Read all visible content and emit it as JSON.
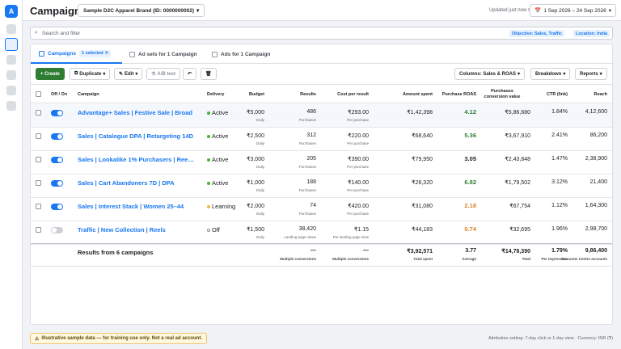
{
  "rail": {
    "logo": "A",
    "icons": [
      "nav-icon-1",
      "nav-icon-2",
      "nav-icon-3",
      "nav-icon-4",
      "nav-icon-5",
      "nav-icon-6"
    ],
    "active_index": 1
  },
  "header": {
    "title": "Campaigns",
    "account_label": "Sample D2C Apparel Brand (ID: 0000000002)",
    "updated": "Updated just now ⟳",
    "date_range": "1 Sep 2026 – 24 Sep 2026"
  },
  "search": {
    "placeholder": "Search and filter",
    "value": "",
    "chips": [
      "Objective: Sales, Traffic",
      "Location: India"
    ]
  },
  "tabs": [
    {
      "label": "Campaigns",
      "badge": "1 selected"
    },
    {
      "label": "Ad sets for 1 Campaign"
    },
    {
      "label": "Ads for 1 Campaign"
    }
  ],
  "toolbar": {
    "create": "+ Create",
    "duplicate": "Duplicate",
    "edit": "Edit",
    "ab_test": "A/B test",
    "undo": "↶",
    "delete": "🗑",
    "columns": "Columns: Sales & ROAS",
    "breakdown": "Breakdown",
    "reports": "Reports"
  },
  "columns": {
    "off_on": "Off / On",
    "campaign": "Campaign",
    "delivery": "Delivery",
    "budget": "Budget",
    "results": "Results",
    "cost_per_result": "Cost per result",
    "amount_spent": "Amount spent",
    "roas": "Purchase ROAS",
    "conv_value_1": "Purchases",
    "conv_value_2": "conversion value",
    "ctr": "CTR (link)",
    "reach": "Reach"
  },
  "rows": [
    {
      "on": true,
      "name": "Advantage+ Sales | Festive Sale | Broad",
      "delivery": "Active",
      "status_color": "#42b72a",
      "budget": "₹5,000",
      "budget_type": "Daily",
      "results": "486",
      "results_type": "Purchases",
      "cpr": "₹293.00",
      "cpr_type": "Per purchase",
      "spent": "₹1,42,398",
      "roas": "4.12",
      "roas_color": "#2e7d32",
      "conv_value": "₹5,86,680",
      "ctr": "1.84%",
      "reach": "4,12,600"
    },
    {
      "on": true,
      "name": "Sales | Catalogue DPA | Retargeting 14D",
      "delivery": "Active",
      "status_color": "#42b72a",
      "budget": "₹2,500",
      "budget_type": "Daily",
      "results": "312",
      "results_type": "Purchases",
      "cpr": "₹220.00",
      "cpr_type": "Per purchase",
      "spent": "₹68,640",
      "roas": "5.36",
      "roas_color": "#2e7d32",
      "conv_value": "₹3,67,910",
      "ctr": "2.41%",
      "reach": "86,200"
    },
    {
      "on": true,
      "name": "Sales | Lookalike 1% Purchasers | Ree…",
      "delivery": "Active",
      "status_color": "#42b72a",
      "budget": "₹3,000",
      "budget_type": "Daily",
      "results": "205",
      "results_type": "Purchases",
      "cpr": "₹390.00",
      "cpr_type": "Per purchase",
      "spent": "₹79,950",
      "roas": "3.05",
      "roas_color": "#1c1e21",
      "conv_value": "₹2,43,848",
      "ctr": "1.47%",
      "reach": "2,38,900"
    },
    {
      "on": true,
      "name": "Sales | Cart Abandoners 7D | DPA",
      "delivery": "Active",
      "status_color": "#42b72a",
      "budget": "₹1,000",
      "budget_type": "Daily",
      "results": "188",
      "results_type": "Purchases",
      "cpr": "₹140.00",
      "cpr_type": "Per purchase",
      "spent": "₹26,320",
      "roas": "6.82",
      "roas_color": "#2e7d32",
      "conv_value": "₹1,79,502",
      "ctr": "3.12%",
      "reach": "21,400"
    },
    {
      "on": true,
      "name": "Sales | Interest Stack | Women 25–44",
      "delivery": "Learning",
      "status_color": "#f5b53f",
      "budget": "₹2,000",
      "budget_type": "Daily",
      "results": "74",
      "results_type": "Purchases",
      "cpr": "₹420.00",
      "cpr_type": "Per purchase",
      "spent": "₹31,080",
      "roas": "2.18",
      "roas_color": "#d9822b",
      "conv_value": "₹67,754",
      "ctr": "1.12%",
      "reach": "1,64,300"
    },
    {
      "on": false,
      "name": "Traffic | New Collection | Reels",
      "delivery": "Off",
      "status_color": "#ffffff",
      "budget": "₹1,500",
      "budget_type": "Daily",
      "results": "38,420",
      "results_type": "Landing page views",
      "cpr": "₹1.15",
      "cpr_type": "Per landing page view",
      "spent": "₹44,183",
      "roas": "0.74",
      "roas_color": "#d9822b",
      "conv_value": "₹32,695",
      "ctr": "1.96%",
      "reach": "2,98,700"
    }
  ],
  "totals": {
    "label": "Results from 6 campaigns",
    "results": "—",
    "results_sub": "Multiple conversions",
    "cpr": "—",
    "cpr_sub": "Multiple conversions",
    "spent": "₹3,92,571",
    "spent_sub": "Total spent",
    "roas": "3.77",
    "roas_sub": "Average",
    "conv_value": "₹14,78,390",
    "conv_value_sub": "Total",
    "ctr": "1.79%",
    "ctr_sub": "Per impression",
    "reach": "9,86,400",
    "reach_sub": "Accounts Centre accounts"
  },
  "footer": {
    "note": "Illustrative sample data — for training use only. Not a real ad account.",
    "attribution": "Attribution setting: 7-day click or 1-day view · Currency: INR (₹)"
  }
}
